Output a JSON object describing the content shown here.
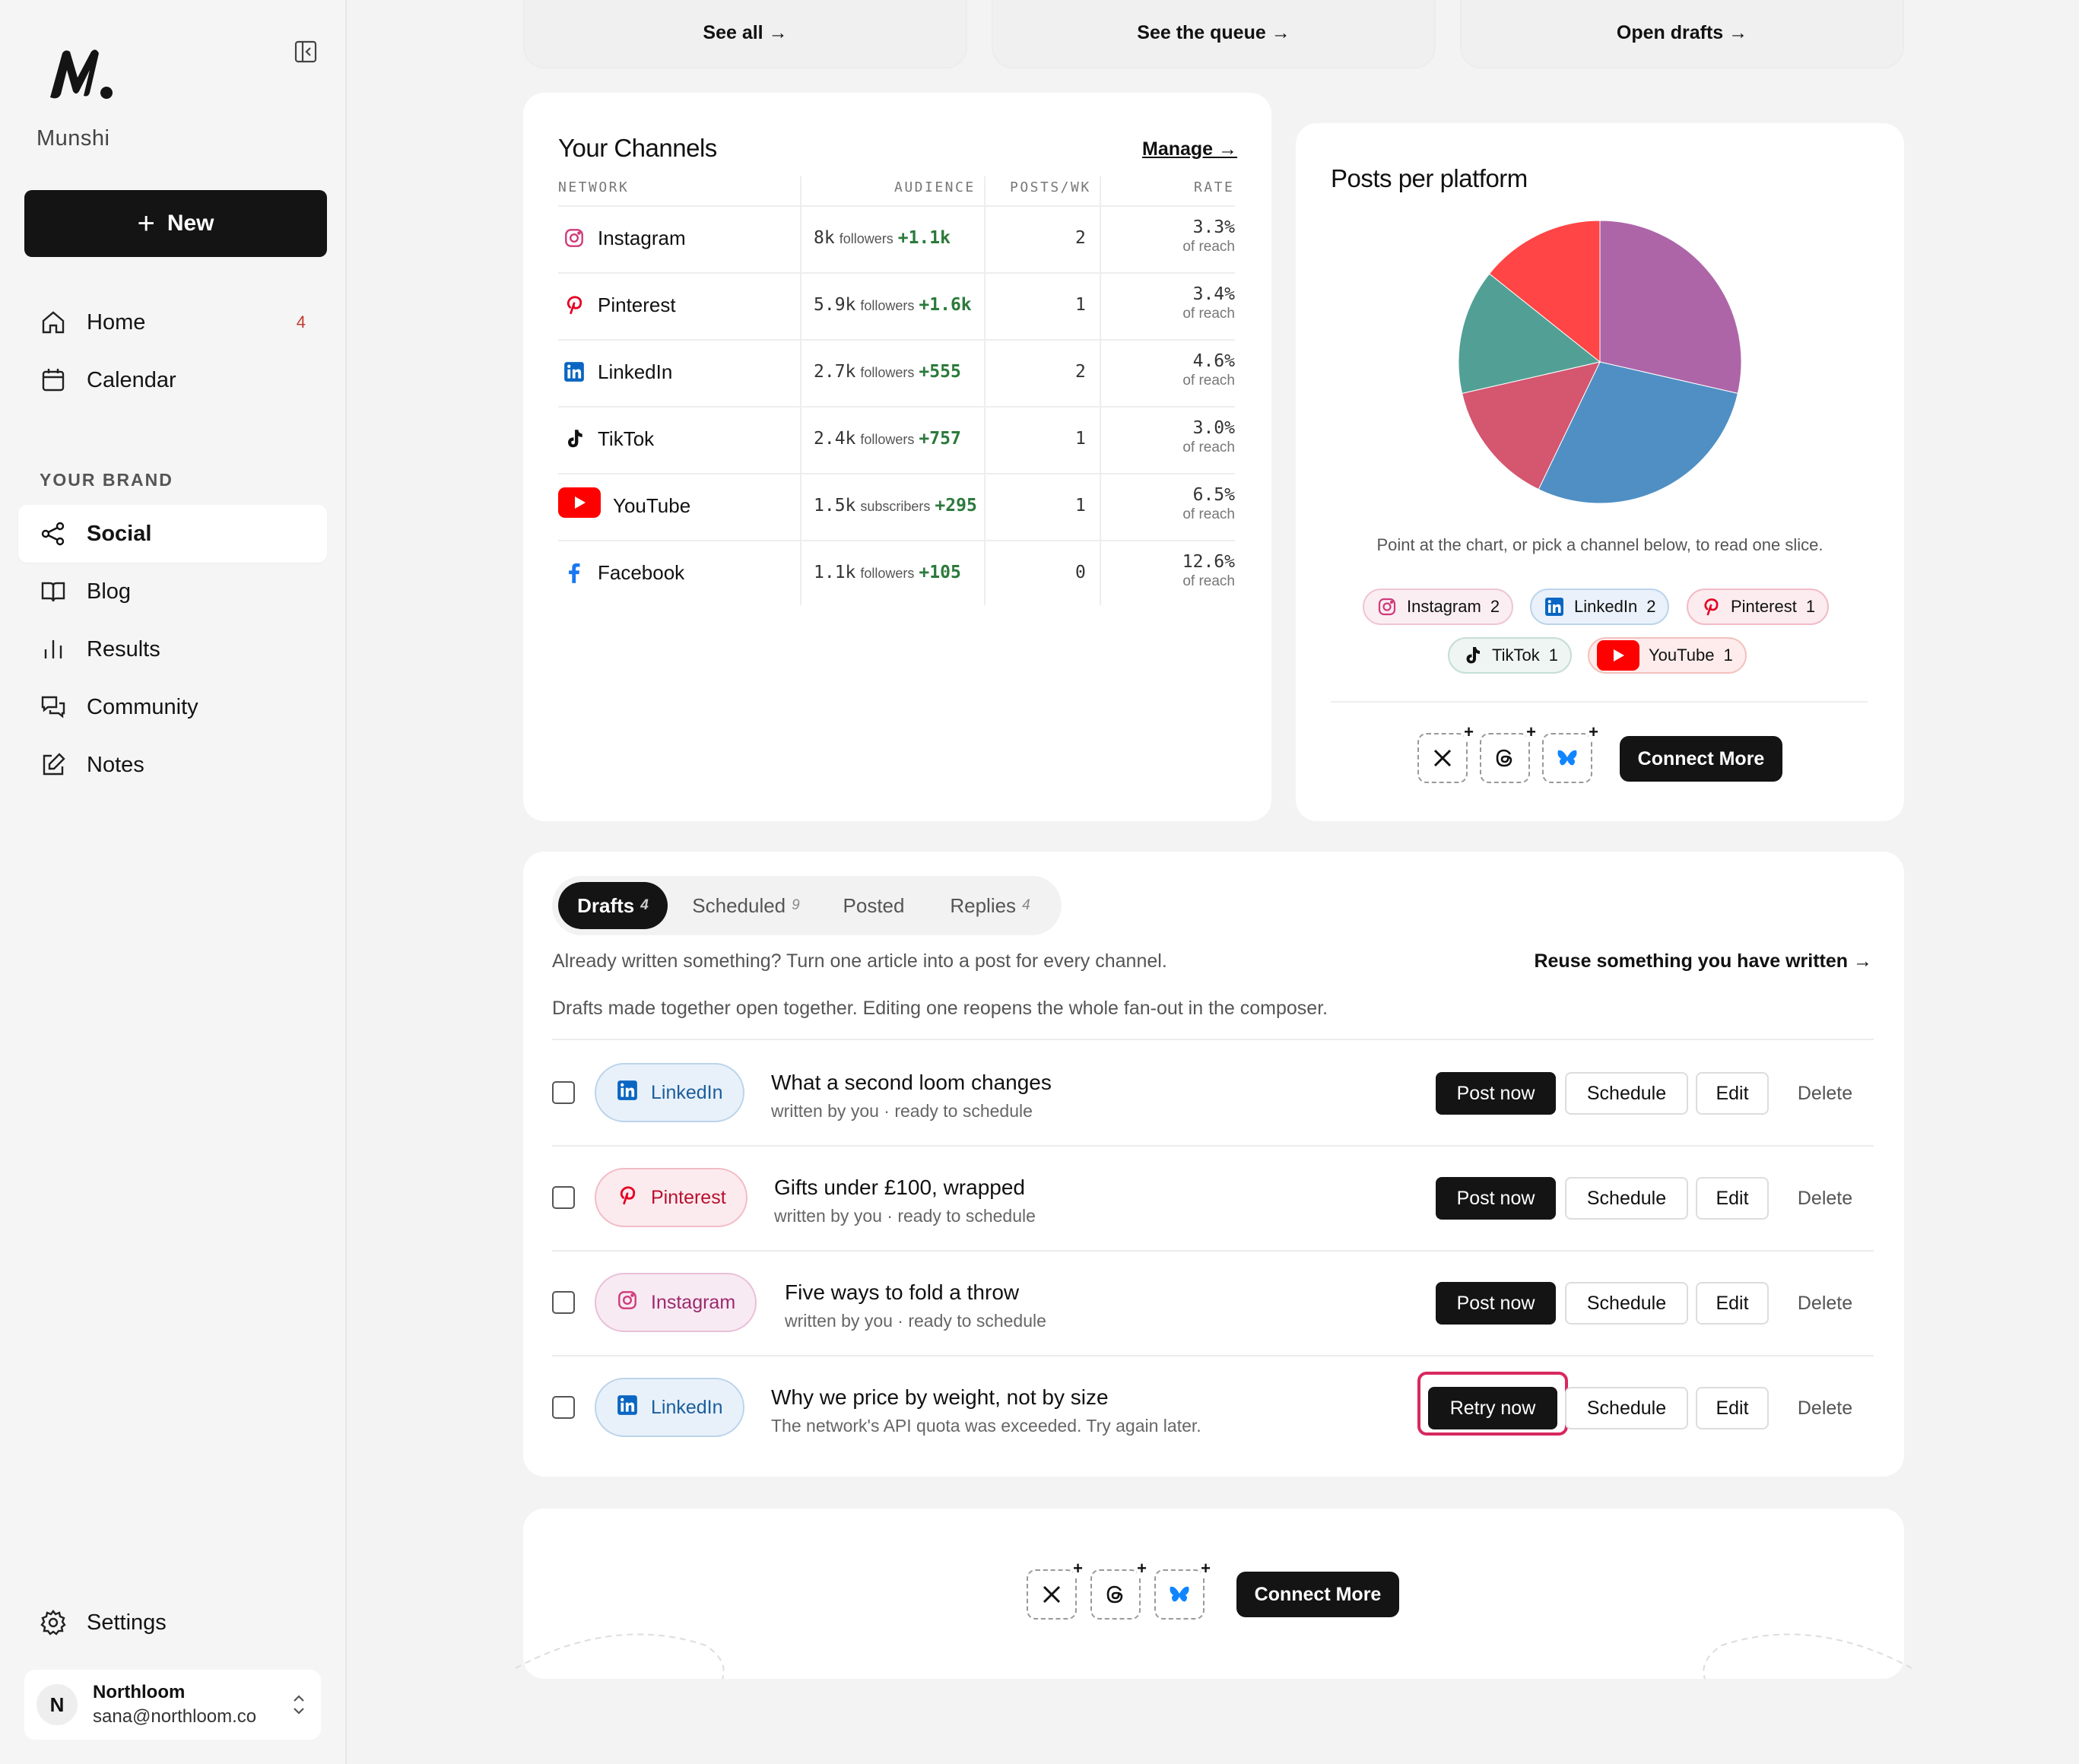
{
  "sidebar": {
    "brand": "Munshi",
    "new_label": "New",
    "nav": [
      {
        "label": "Home",
        "badge": "4"
      },
      {
        "label": "Calendar"
      }
    ],
    "section_label": "YOUR BRAND",
    "brand_nav": [
      {
        "label": "Social",
        "active": true
      },
      {
        "label": "Blog"
      },
      {
        "label": "Results"
      },
      {
        "label": "Community"
      },
      {
        "label": "Notes"
      }
    ],
    "settings_label": "Settings",
    "account": {
      "initial": "N",
      "name": "Northloom",
      "email": "sana@northloom.co"
    }
  },
  "top_links": [
    "See all →",
    "See the queue →",
    "Open drafts →"
  ],
  "channels": {
    "title": "Your Channels",
    "manage": "Manage →",
    "headers": [
      "NETWORK",
      "AUDIENCE",
      "POSTS/WK",
      "RATE"
    ],
    "rows": [
      {
        "name": "Instagram",
        "audience": "8k",
        "unit": "followers",
        "growth": "+1.1k",
        "posts": "2",
        "rate": "3.3%",
        "rate_sub": "of reach"
      },
      {
        "name": "Pinterest",
        "audience": "5.9k",
        "unit": "followers",
        "growth": "+1.6k",
        "posts": "1",
        "rate": "3.4%",
        "rate_sub": "of reach"
      },
      {
        "name": "LinkedIn",
        "audience": "2.7k",
        "unit": "followers",
        "growth": "+555",
        "posts": "2",
        "rate": "4.6%",
        "rate_sub": "of reach"
      },
      {
        "name": "TikTok",
        "audience": "2.4k",
        "unit": "followers",
        "growth": "+757",
        "posts": "1",
        "rate": "3.0%",
        "rate_sub": "of reach"
      },
      {
        "name": "YouTube",
        "audience": "1.5k",
        "unit": "subscribers",
        "growth": "+295",
        "posts": "1",
        "rate": "6.5%",
        "rate_sub": "of reach"
      },
      {
        "name": "Facebook",
        "audience": "1.1k",
        "unit": "followers",
        "growth": "+105",
        "posts": "0",
        "rate": "12.6%",
        "rate_sub": "of reach"
      }
    ]
  },
  "pie_card": {
    "title": "Posts per platform",
    "hint": "Point at the chart, or pick a channel below, to read one slice.",
    "chips": [
      {
        "label": "Instagram",
        "count": "2"
      },
      {
        "label": "LinkedIn",
        "count": "2"
      },
      {
        "label": "Pinterest",
        "count": "1"
      },
      {
        "label": "TikTok",
        "count": "1"
      },
      {
        "label": "YouTube",
        "count": "1"
      }
    ],
    "connect_label": "Connect More"
  },
  "chart_data": {
    "type": "pie",
    "title": "Posts per platform",
    "slices": [
      {
        "label": "Instagram",
        "value": 2,
        "color": "#ad65a8"
      },
      {
        "label": "LinkedIn",
        "value": 2,
        "color": "#4f8fc4"
      },
      {
        "label": "Pinterest",
        "value": 1,
        "color": "#d4566f"
      },
      {
        "label": "TikTok",
        "value": 1,
        "color": "#52a095"
      },
      {
        "label": "YouTube",
        "value": 1,
        "color": "#ff4545"
      }
    ]
  },
  "drafts": {
    "tabs": [
      {
        "label": "Drafts",
        "count": "4",
        "active": true
      },
      {
        "label": "Scheduled",
        "count": "9"
      },
      {
        "label": "Posted",
        "count": ""
      },
      {
        "label": "Replies",
        "count": "4"
      }
    ],
    "hint": "Already written something? Turn one article into a post for every channel.",
    "reuse": "Reuse something you have written →",
    "note": "Drafts made together open together. Editing one reopens the whole fan-out in the composer.",
    "rows": [
      {
        "channel": "LinkedIn",
        "title": "What a second loom changes",
        "sub": "written by you · ready to schedule",
        "primary": "Post now"
      },
      {
        "channel": "Pinterest",
        "title": "Gifts under £100, wrapped",
        "sub": "written by you · ready to schedule",
        "primary": "Post now"
      },
      {
        "channel": "Instagram",
        "title": "Five ways to fold a throw",
        "sub": "written by you · ready to schedule",
        "primary": "Post now"
      },
      {
        "channel": "LinkedIn",
        "title": "Why we price by weight, not by size",
        "sub": "The network's API quota was exceeded. Try again later.",
        "primary": "Retry now"
      }
    ],
    "schedule_label": "Schedule",
    "edit_label": "Edit",
    "delete_label": "Delete"
  },
  "bottom_card": {
    "connect_label": "Connect More"
  }
}
